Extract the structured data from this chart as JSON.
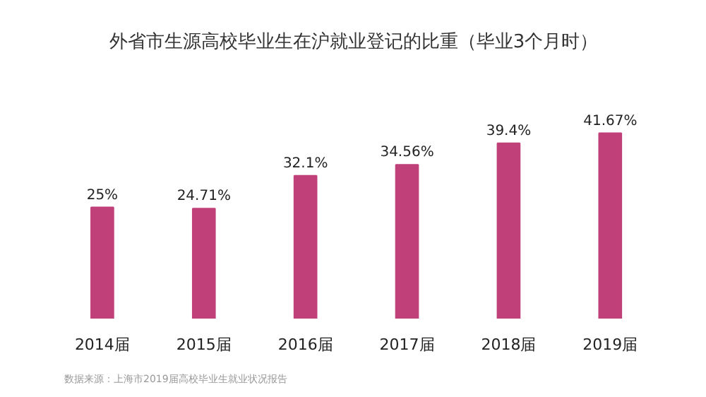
{
  "chart_data": {
    "type": "bar",
    "title": "外省市生源高校毕业生在沪就业登记的比重（毕业3个月时）",
    "categories": [
      "2014届",
      "2015届",
      "2016届",
      "2017届",
      "2018届",
      "2019届"
    ],
    "values": [
      25,
      24.71,
      32.1,
      34.56,
      39.4,
      41.67
    ],
    "value_labels": [
      "25%",
      "24.71%",
      "32.1%",
      "34.56%",
      "39.4%",
      "41.67%"
    ],
    "color": "#c0407a",
    "grid": false,
    "annotations": [
      "数据来源：上海市2019届高校毕业生就业状况报告"
    ]
  }
}
